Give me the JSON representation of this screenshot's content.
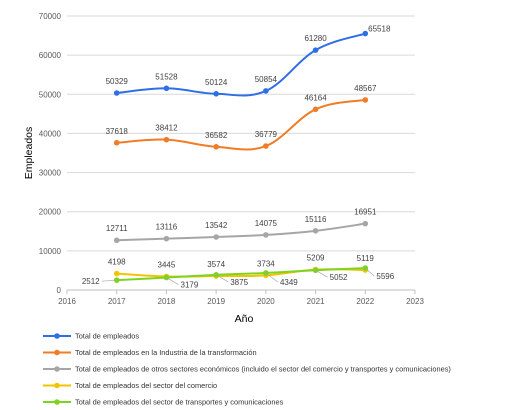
{
  "chart_data": {
    "type": "line",
    "xlabel": "Año",
    "ylabel": "Empleados",
    "xlim": [
      2016,
      2023
    ],
    "ylim": [
      0,
      70000
    ],
    "x_ticks": [
      "2016",
      "2017",
      "2018",
      "2019",
      "2020",
      "2021",
      "2022",
      "2023"
    ],
    "y_ticks": [
      "0",
      "10000",
      "20000",
      "30000",
      "40000",
      "50000",
      "60000",
      "70000"
    ],
    "grid": "horizontal",
    "legend_position": "bottom-left",
    "x": [
      2017,
      2018,
      2019,
      2020,
      2021,
      2022
    ],
    "series": [
      {
        "name": "Total de empleados",
        "color": "#2E6FE6",
        "values": [
          50329,
          51528,
          50124,
          50854,
          61280,
          65518
        ],
        "labels": [
          "50329",
          "51528",
          "50124",
          "50854",
          "61280",
          "65518"
        ]
      },
      {
        "name": "Total de empleados en la Industria de la transformación",
        "color": "#F07C27",
        "values": [
          37618,
          38412,
          36582,
          36779,
          46164,
          48567
        ],
        "labels": [
          "37618",
          "38412",
          "36582",
          "36779",
          "46164",
          "48567"
        ]
      },
      {
        "name": "Total de empleados de otros sectores económicos (incluido el sector del comercio y transportes y comunicaciones)",
        "color": "#A6A6A6",
        "values": [
          12711,
          13116,
          13542,
          14075,
          15116,
          16951
        ],
        "labels": [
          "12711",
          "13116",
          "13542",
          "14075",
          "15116",
          "16951"
        ]
      },
      {
        "name": "Total de empleados del sector del comercio",
        "color": "#F2C400",
        "values": [
          4198,
          3445,
          3574,
          3734,
          5209,
          5119
        ],
        "labels": [
          "4198",
          "3445",
          "3574",
          "3734",
          "5209",
          "5119"
        ]
      },
      {
        "name": "Total de empleados del sector de transportes y comunicaciones",
        "color": "#7ED321",
        "values": [
          2512,
          3179,
          3875,
          4349,
          5052,
          5596
        ],
        "labels": [
          "2512",
          "3179",
          "3875",
          "4349",
          "5052",
          "5596"
        ]
      }
    ]
  }
}
